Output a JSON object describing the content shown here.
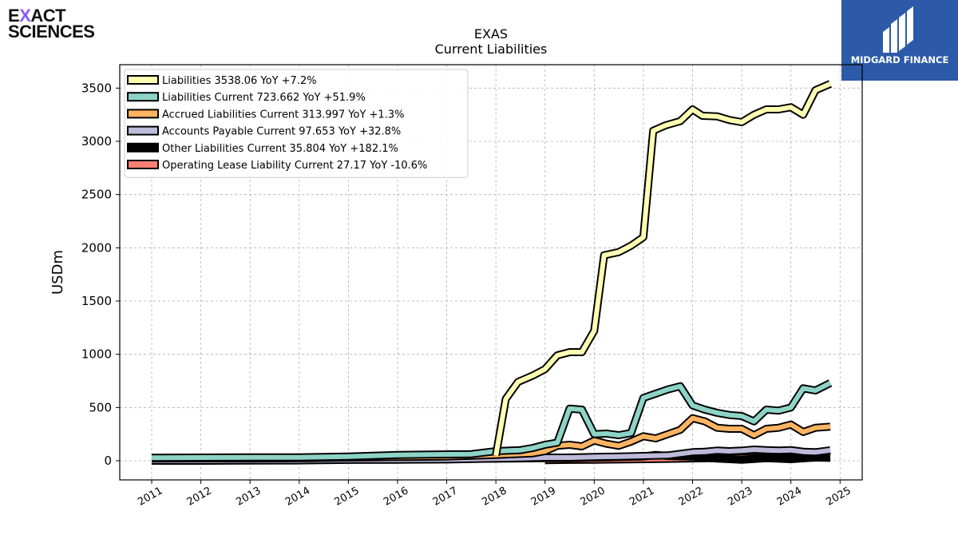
{
  "logo_left": {
    "line1_a": "E",
    "line1_x": "X",
    "line1_b": "ACT",
    "line2": "SCIENCES",
    "x_color": "#8a5cf5"
  },
  "logo_right": {
    "brand": "MIDGARD FINANCE",
    "bg_color": "#2c5aa8"
  },
  "chart_data": {
    "type": "line",
    "title": "EXAS",
    "subtitle": "Current  Liabilities",
    "ylabel": "USDm",
    "xlabel": "",
    "xlim": [
      2010.35,
      2025.45
    ],
    "ylim": [
      -180,
      3720
    ],
    "x_ticks": [
      2011,
      2012,
      2013,
      2014,
      2015,
      2016,
      2017,
      2018,
      2019,
      2020,
      2021,
      2022,
      2023,
      2024,
      2025
    ],
    "y_ticks": [
      0,
      500,
      1000,
      1500,
      2000,
      2500,
      3000,
      3500
    ],
    "grid": true,
    "legend_position": "top-left",
    "series": [
      {
        "name": "Liabilities",
        "legend": "Liabilities  3538.06 YoY +7.2%",
        "color": "#ffffb3",
        "x": [
          2018.0,
          2018.2,
          2018.45,
          2018.75,
          2019.0,
          2019.25,
          2019.5,
          2019.75,
          2020.0,
          2020.2,
          2020.5,
          2020.75,
          2021.0,
          2021.2,
          2021.45,
          2021.75,
          2022.0,
          2022.2,
          2022.5,
          2022.75,
          2023.0,
          2023.25,
          2023.5,
          2023.75,
          2024.0,
          2024.25,
          2024.5,
          2024.8
        ],
        "y": [
          50,
          580,
          740,
          800,
          860,
          990,
          1020,
          1020,
          1220,
          1930,
          1960,
          2020,
          2100,
          3100,
          3150,
          3190,
          3300,
          3240,
          3235,
          3200,
          3180,
          3250,
          3300,
          3300,
          3320,
          3250,
          3480,
          3540
        ]
      },
      {
        "name": "Liabilities Current",
        "legend": "Liabilities Current  723.662 YoY +51.9%",
        "color": "#8dd3c7",
        "x": [
          2011.0,
          2012.0,
          2013.0,
          2014.0,
          2015.0,
          2016.0,
          2017.0,
          2017.5,
          2018.0,
          2018.5,
          2018.75,
          2019.0,
          2019.25,
          2019.5,
          2019.75,
          2020.0,
          2020.25,
          2020.5,
          2020.75,
          2021.0,
          2021.25,
          2021.5,
          2021.75,
          2022.0,
          2022.25,
          2022.5,
          2022.75,
          2023.0,
          2023.25,
          2023.5,
          2023.75,
          2024.0,
          2024.25,
          2024.5,
          2024.8
        ],
        "y": [
          28,
          30,
          32,
          32,
          40,
          55,
          60,
          62,
          90,
          100,
          120,
          150,
          170,
          490,
          480,
          250,
          255,
          240,
          260,
          590,
          630,
          670,
          700,
          520,
          480,
          450,
          430,
          420,
          370,
          480,
          470,
          500,
          680,
          660,
          730
        ]
      },
      {
        "name": "Accrued Liabilities Current",
        "legend": "Accrued Liabilities Current  313.997 YoY +1.3%",
        "color": "#fdb462",
        "x": [
          2011.0,
          2012.0,
          2013.0,
          2014.0,
          2015.0,
          2016.0,
          2017.0,
          2018.0,
          2018.75,
          2019.0,
          2019.25,
          2019.5,
          2019.75,
          2020.0,
          2020.25,
          2020.5,
          2020.75,
          2021.0,
          2021.25,
          2021.5,
          2021.75,
          2022.0,
          2022.25,
          2022.5,
          2022.75,
          2023.0,
          2023.25,
          2023.5,
          2023.75,
          2024.0,
          2024.25,
          2024.5,
          2024.8
        ],
        "y": [
          20,
          22,
          22,
          24,
          30,
          35,
          40,
          55,
          70,
          90,
          140,
          150,
          135,
          190,
          160,
          140,
          180,
          230,
          210,
          250,
          290,
          400,
          370,
          310,
          300,
          300,
          240,
          300,
          310,
          340,
          270,
          310,
          320
        ]
      },
      {
        "name": "Accounts Payable Current",
        "legend": "Accounts Payable Current  97.653 YoY +32.8%",
        "color": "#bebada",
        "x": [
          2011.0,
          2012.0,
          2013.0,
          2014.0,
          2015.0,
          2016.0,
          2017.0,
          2018.0,
          2018.5,
          2019.0,
          2019.5,
          2020.0,
          2020.5,
          2021.0,
          2021.5,
          2022.0,
          2022.25,
          2022.5,
          2022.75,
          2023.0,
          2023.25,
          2023.5,
          2023.75,
          2024.0,
          2024.25,
          2024.5,
          2024.8
        ],
        "y": [
          0,
          0,
          2,
          3,
          8,
          10,
          12,
          20,
          25,
          30,
          30,
          35,
          40,
          45,
          50,
          80,
          85,
          95,
          90,
          95,
          105,
          100,
          95,
          100,
          85,
          80,
          98
        ]
      },
      {
        "name": "Other Liabilities Current",
        "legend": "Other Liabilities Current  35.804 YoY +182.1%",
        "color": "#000000",
        "x": [
          2015.0,
          2016.0,
          2017.0,
          2018.0,
          2018.5,
          2019.0,
          2019.5,
          2020.0,
          2020.5,
          2021.0,
          2021.25,
          2021.5,
          2022.0,
          2022.5,
          2023.0,
          2023.5,
          2024.0,
          2024.5,
          2024.8
        ],
        "y": [
          15,
          15,
          18,
          20,
          22,
          25,
          25,
          30,
          35,
          40,
          55,
          45,
          40,
          20,
          10,
          25,
          15,
          30,
          36
        ]
      },
      {
        "name": "Operating Lease Liability Current",
        "legend": "Operating Lease Liability Current  27.17 YoY -10.6%",
        "color": "#fb8072",
        "x": [
          2019.0,
          2019.5,
          2020.0,
          2020.5,
          2021.0,
          2021.5,
          2022.0,
          2022.5,
          2023.0,
          2023.5,
          2024.0,
          2024.5,
          2024.8
        ],
        "y": [
          5,
          8,
          10,
          12,
          15,
          18,
          22,
          25,
          28,
          30,
          30,
          30,
          27
        ]
      }
    ]
  }
}
